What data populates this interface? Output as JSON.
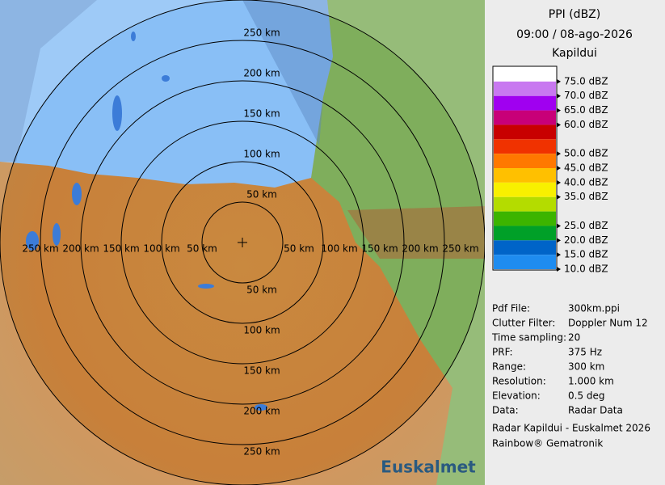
{
  "header": {
    "title": "PPI (dBZ)",
    "datetime": "09:00 / 08-ago-2026",
    "station": "Kapildui"
  },
  "legend": [
    {
      "color": "#ffffff",
      "label": "75.0 dBZ"
    },
    {
      "color": "#c878f0",
      "label": "70.0 dBZ"
    },
    {
      "color": "#a000f0",
      "label": "65.0 dBZ"
    },
    {
      "color": "#c80078",
      "label": "60.0 dBZ"
    },
    {
      "color": "#c80000"
    },
    {
      "color": "#f03200",
      "label": "50.0 dBZ"
    },
    {
      "color": "#ff7800",
      "label": "45.0 dBZ"
    },
    {
      "color": "#ffc000",
      "label": "40.0 dBZ"
    },
    {
      "color": "#f8f000",
      "label": "35.0 dBZ"
    },
    {
      "color": "#b4dc00"
    },
    {
      "color": "#3cb400",
      "label": "25.0 dBZ"
    },
    {
      "color": "#00a028",
      "label": "20.0 dBZ"
    },
    {
      "color": "#0064c8",
      "label": "15.0 dBZ"
    },
    {
      "color": "#1e8cf0",
      "label": "10.0 dBZ"
    }
  ],
  "info": [
    [
      "Pdf File:",
      "300km.ppi"
    ],
    [
      "Clutter Filter:",
      "Doppler Num 12"
    ],
    [
      "Time sampling:",
      "20"
    ],
    [
      "PRF:",
      "375 Hz"
    ],
    [
      "Range:",
      "300 km"
    ],
    [
      "Resolution:",
      "1.000 km"
    ],
    [
      "Elevation:",
      "0.5 deg"
    ],
    [
      "Data:",
      "Radar Data"
    ]
  ],
  "footer": [
    "Radar Kapildui - Euskalmet 2026",
    "Rainbow® Gematronik"
  ],
  "range_labels": [
    "50 km",
    "100 km",
    "150 km",
    "200 km",
    "250 km"
  ],
  "logo": "Euskalmet"
}
